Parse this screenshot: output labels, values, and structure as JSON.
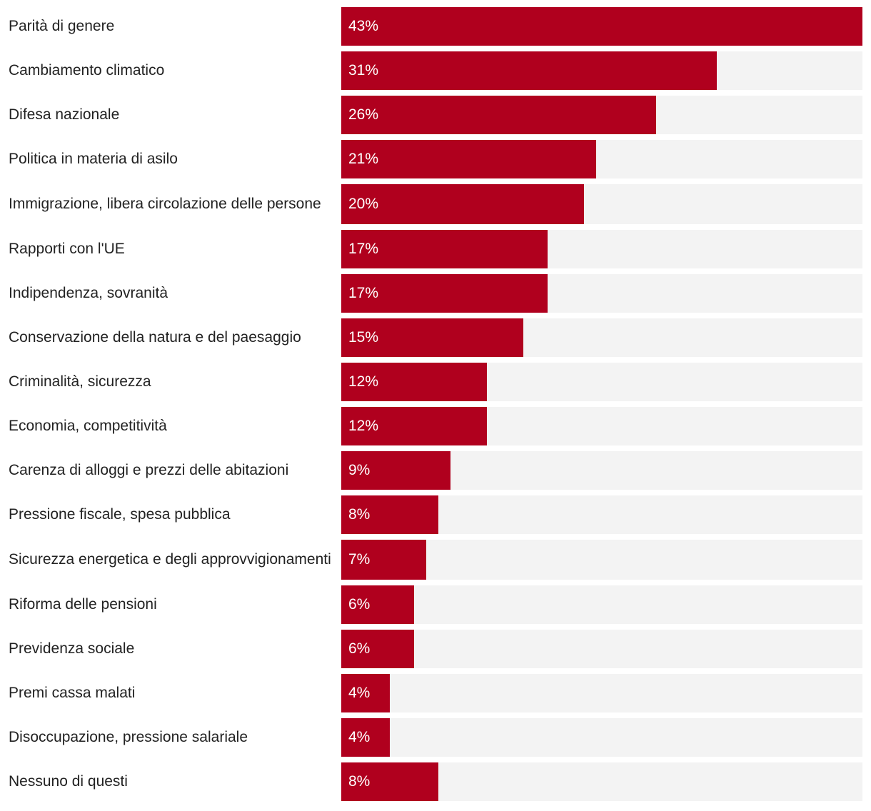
{
  "chart_data": {
    "type": "bar",
    "orientation": "horizontal",
    "categories": [
      "Parità di genere",
      "Cambiamento climatico",
      "Difesa nazionale",
      "Politica in materia di asilo",
      "Immigrazione, libera circolazione delle persone",
      "Rapporti con l'UE",
      "Indipendenza, sovranità",
      "Conservazione della natura e del paesaggio",
      "Criminalità, sicurezza",
      "Economia, competitività",
      "Carenza di alloggi e prezzi delle abitazioni",
      "Pressione fiscale, spesa pubblica",
      "Sicurezza energetica e degli approvvigionamenti",
      "Riforma delle pensioni",
      "Previdenza sociale",
      "Premi cassa malati",
      "Disoccupazione, pressione salariale",
      "Nessuno di questi"
    ],
    "values": [
      43,
      31,
      26,
      21,
      20,
      17,
      17,
      15,
      12,
      12,
      9,
      8,
      7,
      6,
      6,
      4,
      4,
      8
    ],
    "value_labels": [
      "43%",
      "31%",
      "26%",
      "21%",
      "20%",
      "17%",
      "17%",
      "15%",
      "12%",
      "12%",
      "9%",
      "8%",
      "7%",
      "6%",
      "6%",
      "4%",
      "4%",
      "8%"
    ],
    "unit": "%",
    "xlim": [
      0,
      43
    ],
    "grid": false,
    "legend": "none",
    "colors": {
      "bar": "#b0001e",
      "track": "#f3f3f3",
      "label_text": "#222222",
      "value_text": "#ffffff"
    }
  }
}
